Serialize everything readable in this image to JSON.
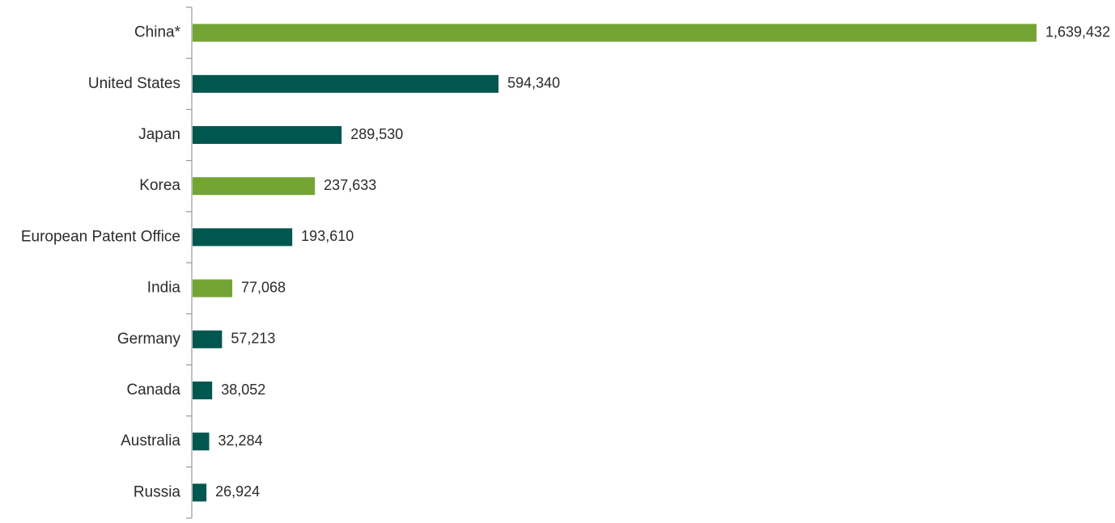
{
  "chart_data": {
    "type": "bar",
    "orientation": "horizontal",
    "categories": [
      "China*",
      "United States",
      "Japan",
      "Korea",
      "European Patent Office",
      "India",
      "Germany",
      "Canada",
      "Australia",
      "Russia"
    ],
    "values": [
      1639432,
      594340,
      289530,
      237633,
      193610,
      77068,
      57213,
      38052,
      32284,
      26924
    ],
    "value_labels": [
      "1,639,432",
      "594,340",
      "289,530",
      "237,633",
      "193,610",
      "77,068",
      "57,213",
      "38,052",
      "32,284",
      "26,924"
    ],
    "bar_colors": [
      "#74a534",
      "#00574f",
      "#00574f",
      "#74a534",
      "#00574f",
      "#74a534",
      "#00574f",
      "#00574f",
      "#00574f",
      "#00574f"
    ],
    "title": "",
    "xlabel": "",
    "ylabel": "",
    "xlim": [
      0,
      1639432
    ],
    "grid": false,
    "legend": "none"
  }
}
